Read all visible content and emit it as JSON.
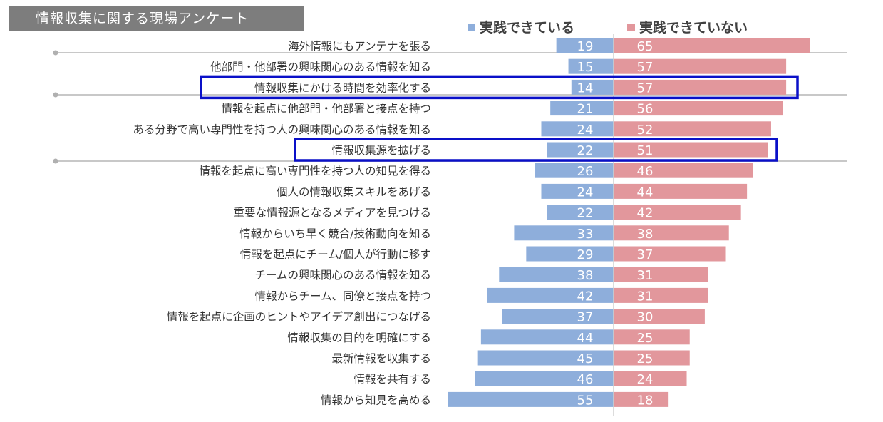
{
  "title": "情報収集に関する現場アンケート",
  "colors": {
    "practiced": "#8eaedb",
    "not_practiced": "#e2979c",
    "highlight": "#0a10c8",
    "title_bg": "#7d7d7d",
    "divider": "#c8c8c8"
  },
  "chart_data": {
    "type": "bar",
    "orientation": "horizontal-diverging",
    "title": "情報収集に関する現場アンケート",
    "legend_position": "top-right",
    "categories": [
      "海外情報にもアンテナを張る",
      "他部門・他部署の興味関心のある情報を知る",
      "情報収集にかける時間を効率化する",
      "情報を起点に他部門・他部署と接点を持つ",
      "ある分野で高い専門性を持つ人の興味関心のある情報を知る",
      "情報収集源を拡げる",
      "情報を起点に高い専門性を持つ人の知見を得る",
      "個人の情報収集スキルをあげる",
      "重要な情報源となるメディアを見つける",
      "情報からいち早く競合/技術動向を知る",
      "情報を起点にチーム/個人が行動に移す",
      "チームの興味関心のある情報を知る",
      "情報からチーム、同僚と接点を持つ",
      "情報を起点に企画のヒントやアイデア創出につなげる",
      "情報収集の目的を明確にする",
      "最新情報を収集する",
      "情報を共有する",
      "情報から知見を高める"
    ],
    "series": [
      {
        "name": "実践できている",
        "values": [
          19,
          15,
          14,
          21,
          24,
          22,
          26,
          24,
          22,
          33,
          29,
          38,
          42,
          37,
          44,
          45,
          46,
          55
        ]
      },
      {
        "name": "実践できていない",
        "values": [
          65,
          57,
          57,
          56,
          52,
          51,
          46,
          44,
          42,
          38,
          37,
          31,
          31,
          30,
          25,
          25,
          24,
          18
        ]
      }
    ],
    "highlighted_categories": [
      "情報収集にかける時間を効率化する",
      "情報収集源を拡げる"
    ]
  }
}
